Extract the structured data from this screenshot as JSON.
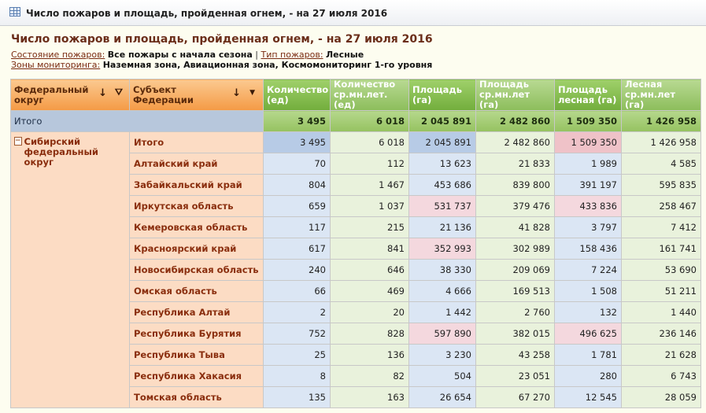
{
  "window": {
    "title": "Число пожаров и площадь, пройденная огнем, - на 27 июля 2016",
    "icon": "table-grid-icon"
  },
  "report": {
    "title": "Число пожаров и площадь, пройденная огнем, - на 27 июля 2016",
    "filters": {
      "state_label": "Состояние пожаров:",
      "state_value": "Все пожары с начала сезона",
      "separator": "|",
      "type_label": "Тип пожаров:",
      "type_value": "Лесные",
      "zones_label": "Зоны мониторинга:",
      "zones_value": "Наземная зона, Авиационная зона, Космомониторинг 1-го уровня"
    }
  },
  "headers": {
    "fed_district": "Федеральный округ",
    "subject": "Субъект Федерации",
    "columns": [
      "Количество (ед)",
      "Количество ср.мн.лет. (ед)",
      "Площадь (га)",
      "Площадь ср.мн.лет (га)",
      "Площадь лесная (га)",
      "Лесная ср.мн.лет (га)"
    ]
  },
  "total_row": {
    "label": "Итого",
    "values": [
      "3 495",
      "6 018",
      "2 045 891",
      "2 482 860",
      "1 509 350",
      "1 426 958"
    ]
  },
  "district": {
    "name": "Сибирский федеральный округ",
    "toggle": "−",
    "itogo": {
      "label": "Итого",
      "values": [
        "3 495",
        "6 018",
        "2 045 891",
        "2 482 860",
        "1 509 350",
        "1 426 958"
      ]
    },
    "rows": [
      {
        "label": "Алтайский край",
        "values": [
          "70",
          "112",
          "13 623",
          "21 833",
          "1 989",
          "4 585"
        ]
      },
      {
        "label": "Забайкальский край",
        "values": [
          "804",
          "1 467",
          "453 686",
          "839 800",
          "391 197",
          "595 835"
        ]
      },
      {
        "label": "Иркутская область",
        "values": [
          "659",
          "1 037",
          "531 737",
          "379 476",
          "433 836",
          "258 467"
        ]
      },
      {
        "label": "Кемеровская область",
        "values": [
          "117",
          "215",
          "21 136",
          "41 828",
          "3 797",
          "7 412"
        ]
      },
      {
        "label": "Красноярский край",
        "values": [
          "617",
          "841",
          "352 993",
          "302 989",
          "158 436",
          "161 741"
        ]
      },
      {
        "label": "Новосибирская область",
        "values": [
          "240",
          "646",
          "38 330",
          "209 069",
          "7 224",
          "53 690"
        ]
      },
      {
        "label": "Омская область",
        "values": [
          "66",
          "469",
          "4 666",
          "169 513",
          "1 508",
          "51 211"
        ]
      },
      {
        "label": "Республика Алтай",
        "values": [
          "2",
          "20",
          "1 442",
          "2 760",
          "132",
          "1 440"
        ]
      },
      {
        "label": "Республика Бурятия",
        "values": [
          "752",
          "828",
          "597 890",
          "382 015",
          "496 625",
          "236 146"
        ]
      },
      {
        "label": "Республика Тыва",
        "values": [
          "25",
          "136",
          "3 230",
          "43 258",
          "1 781",
          "21 628"
        ]
      },
      {
        "label": "Республика Хакасия",
        "values": [
          "8",
          "82",
          "504",
          "23 051",
          "280",
          "6 743"
        ]
      },
      {
        "label": "Томская область",
        "values": [
          "135",
          "163",
          "26 654",
          "67 270",
          "12 545",
          "28 059"
        ]
      }
    ]
  },
  "colors": {
    "blue": "#dbe6f4",
    "green": "#e9f2dc",
    "pink": "#f4d8de",
    "header_green": "#8cbd5b",
    "header_orange": "#f49a45"
  }
}
